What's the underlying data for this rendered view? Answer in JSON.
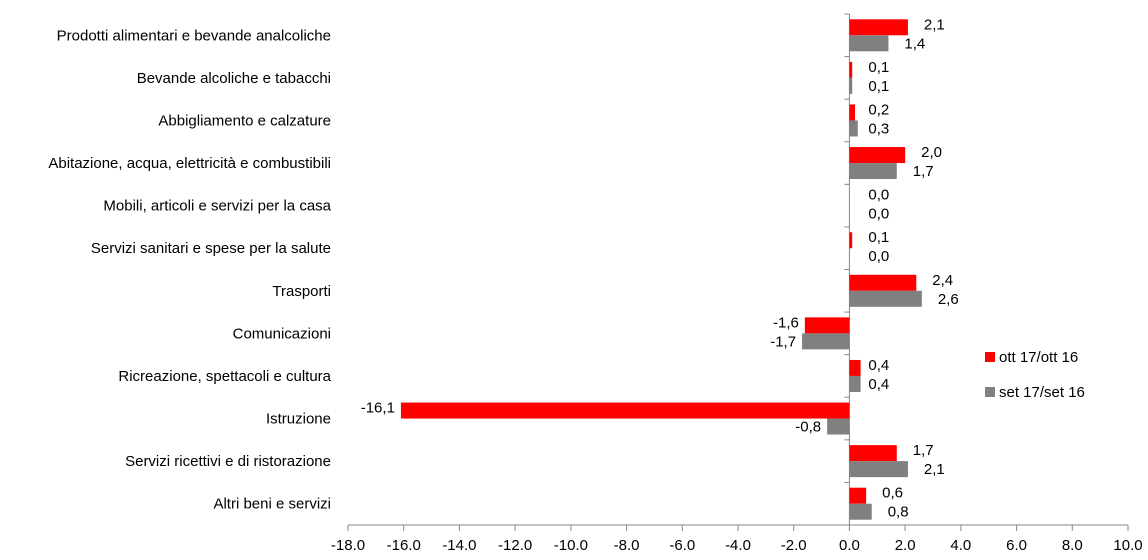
{
  "chart_data": {
    "type": "bar",
    "orientation": "horizontal",
    "categories": [
      "Prodotti alimentari e bevande analcoliche",
      "Bevande alcoliche e tabacchi",
      "Abbigliamento e calzature",
      "Abitazione, acqua, elettricità e combustibili",
      "Mobili, articoli e servizi per la casa",
      "Servizi sanitari e spese per la salute",
      "Trasporti",
      "Comunicazioni",
      "Ricreazione, spettacoli e cultura",
      "Istruzione",
      "Servizi ricettivi e di ristorazione",
      "Altri beni e servizi"
    ],
    "series": [
      {
        "name": "ott 17/ott 16",
        "color": "#FF0000",
        "values": [
          2.1,
          0.1,
          0.2,
          2.0,
          0.0,
          0.1,
          2.4,
          -1.6,
          0.4,
          -16.1,
          1.7,
          0.6
        ],
        "labels": [
          "2,1",
          "0,1",
          "0,2",
          "2,0",
          "0,0",
          "0,1",
          "2,4",
          "-1,6",
          "0,4",
          "-16,1",
          "1,7",
          "0,6"
        ]
      },
      {
        "name": "set 17/set 16",
        "color": "#808080",
        "values": [
          1.4,
          0.1,
          0.3,
          1.7,
          0.0,
          0.0,
          2.6,
          -1.7,
          0.4,
          -0.8,
          2.1,
          0.8
        ],
        "labels": [
          "1,4",
          "0,1",
          "0,3",
          "1,7",
          "0,0",
          "0,0",
          "2,6",
          "-1,7",
          "0,4",
          "-0,8",
          "2,1",
          "0,8"
        ]
      }
    ],
    "xlim": [
      -18,
      10
    ],
    "xticks": [
      -18,
      -16,
      -14,
      -12,
      -10,
      -8,
      -6,
      -4,
      -2,
      0,
      2,
      4,
      6,
      8,
      10
    ],
    "xtick_labels": [
      "-18.0",
      "-16.0",
      "-14.0",
      "-12.0",
      "-10.0",
      "-8.0",
      "-6.0",
      "-4.0",
      "-2.0",
      "0.0",
      "2.0",
      "4.0",
      "6.0",
      "8.0",
      "10.0"
    ],
    "grid": false,
    "legend_position": "right"
  }
}
